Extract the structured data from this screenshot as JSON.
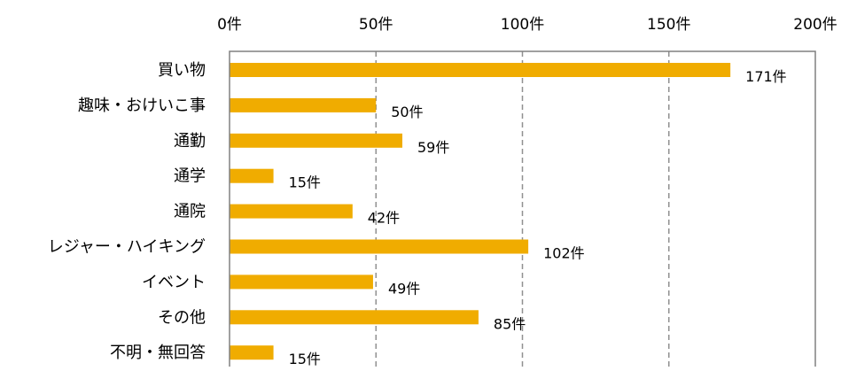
{
  "chart_data": {
    "type": "bar",
    "orientation": "horizontal",
    "categories": [
      "買い物",
      "趣味・おけいこ事",
      "通勤",
      "通学",
      "通院",
      "レジャー・ハイキング",
      "イベント",
      "その他",
      "不明・無回答"
    ],
    "values": [
      171,
      50,
      59,
      15,
      42,
      102,
      49,
      85,
      15
    ],
    "value_labels": [
      "171件",
      "50件",
      "59件",
      "15件",
      "42件",
      "102件",
      "49件",
      "85件",
      "15件"
    ],
    "x_ticks": [
      0,
      50,
      100,
      150,
      200
    ],
    "x_tick_labels": [
      "0件",
      "50件",
      "100件",
      "150件",
      "200件"
    ],
    "xlim": [
      0,
      200
    ],
    "x_axis_position": "top",
    "grid": "vertical-dashed",
    "title": "",
    "xlabel": "",
    "ylabel": ""
  },
  "colors": {
    "bar": "#F0AC00",
    "grid": "#909090",
    "frame": "#808080"
  }
}
